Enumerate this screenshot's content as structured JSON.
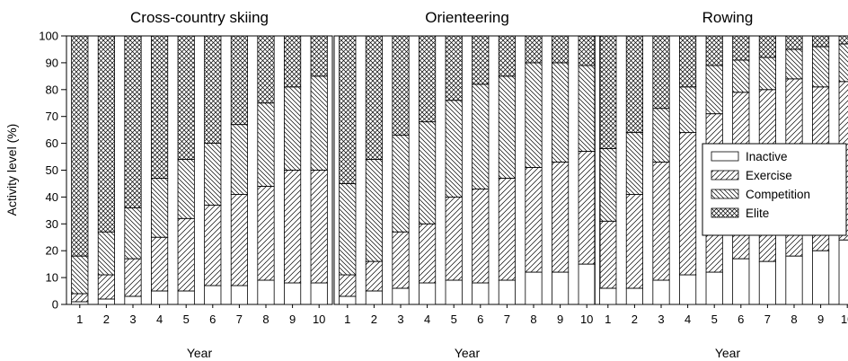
{
  "chart_data": {
    "type": "bar",
    "stacked": true,
    "units": "percent",
    "ylabel": "Activity level (%)",
    "ylim": [
      0,
      100
    ],
    "yticks": [
      0,
      10,
      20,
      30,
      40,
      50,
      60,
      70,
      80,
      90,
      100
    ],
    "xlabel": "Year",
    "categories": [
      "1",
      "2",
      "3",
      "4",
      "5",
      "6",
      "7",
      "8",
      "9",
      "10"
    ],
    "legend": {
      "position": "right",
      "entries": [
        {
          "name": "Inactive",
          "pattern": "none"
        },
        {
          "name": "Exercise",
          "pattern": "diagonal-forward"
        },
        {
          "name": "Competition",
          "pattern": "diagonal-back"
        },
        {
          "name": "Elite",
          "pattern": "crosshatch"
        }
      ]
    },
    "panels": [
      {
        "title": "Cross-country skiing",
        "xlabel": "Year",
        "series": [
          {
            "name": "Inactive",
            "values": [
              1,
              2,
              3,
              5,
              5,
              7,
              7,
              9,
              8,
              8
            ]
          },
          {
            "name": "Exercise",
            "values": [
              3,
              9,
              14,
              20,
              27,
              30,
              34,
              35,
              42,
              42
            ]
          },
          {
            "name": "Competition",
            "values": [
              14,
              16,
              19,
              22,
              22,
              23,
              26,
              31,
              31,
              35
            ]
          },
          {
            "name": "Elite",
            "values": [
              82,
              73,
              64,
              53,
              46,
              40,
              33,
              25,
              19,
              15
            ]
          }
        ]
      },
      {
        "title": "Orienteering",
        "xlabel": "Year",
        "series": [
          {
            "name": "Inactive",
            "values": [
              3,
              5,
              6,
              8,
              9,
              8,
              9,
              12,
              12,
              15
            ]
          },
          {
            "name": "Exercise",
            "values": [
              8,
              11,
              21,
              22,
              31,
              35,
              38,
              39,
              41,
              42
            ]
          },
          {
            "name": "Competition",
            "values": [
              34,
              38,
              36,
              38,
              36,
              39,
              38,
              39,
              37,
              32
            ]
          },
          {
            "name": "Elite",
            "values": [
              55,
              46,
              37,
              32,
              24,
              18,
              15,
              10,
              10,
              11
            ]
          }
        ]
      },
      {
        "title": "Rowing",
        "xlabel": "Year",
        "series": [
          {
            "name": "Inactive",
            "values": [
              6,
              6,
              9,
              11,
              12,
              17,
              16,
              18,
              20,
              24
            ]
          },
          {
            "name": "Exercise",
            "values": [
              25,
              35,
              44,
              53,
              59,
              62,
              64,
              66,
              61,
              59
            ]
          },
          {
            "name": "Competition",
            "values": [
              27,
              23,
              20,
              17,
              18,
              12,
              12,
              11,
              15,
              14
            ]
          },
          {
            "name": "Elite",
            "values": [
              42,
              36,
              27,
              19,
              11,
              9,
              8,
              5,
              4,
              3
            ]
          }
        ]
      }
    ]
  }
}
